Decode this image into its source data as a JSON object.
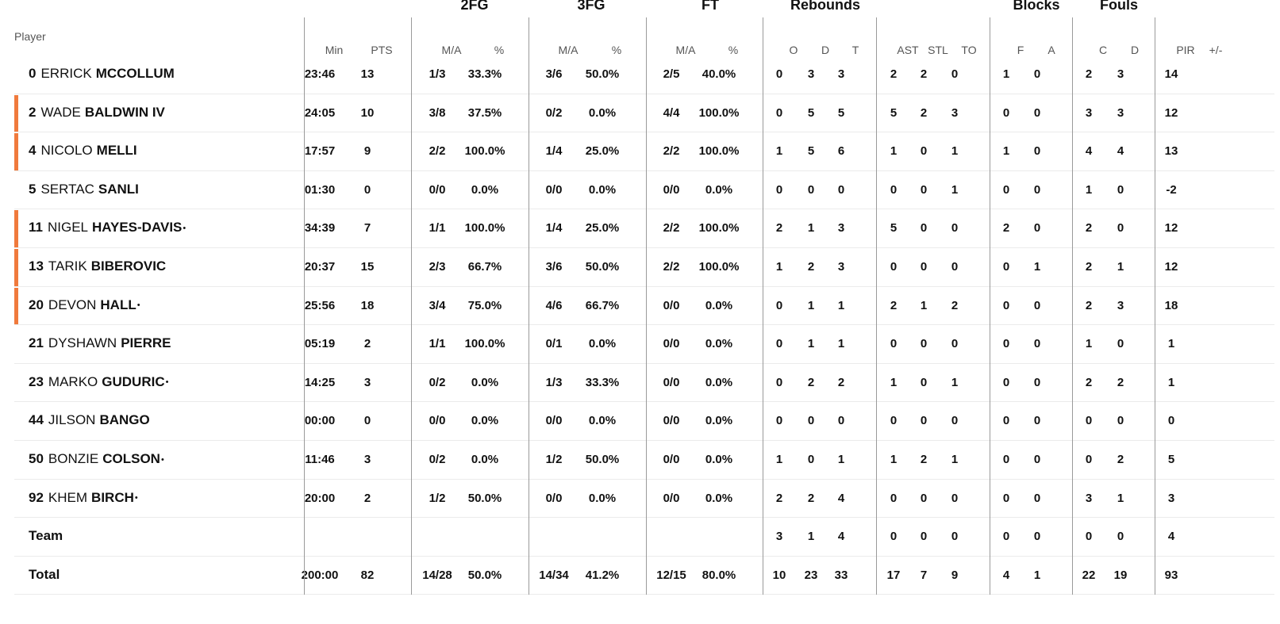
{
  "headers": {
    "player": "Player",
    "groups": {
      "fg2": "2FG",
      "fg3": "3FG",
      "ft": "FT",
      "rebounds": "Rebounds",
      "blocks": "Blocks",
      "fouls": "Fouls"
    },
    "cols": {
      "min": "Min",
      "pts": "PTS",
      "fg2_ma": "M/A",
      "fg2_pct": "%",
      "fg3_ma": "M/A",
      "fg3_pct": "%",
      "ft_ma": "M/A",
      "ft_pct": "%",
      "reb_o": "O",
      "reb_d": "D",
      "reb_t": "T",
      "ast": "AST",
      "stl": "STL",
      "to": "TO",
      "blk_f": "F",
      "blk_a": "A",
      "foul_c": "C",
      "foul_d": "D",
      "pir": "PIR",
      "pm": "+/-"
    }
  },
  "players": [
    {
      "num": "0",
      "first": "ERRICK",
      "last": "MCCOLLUM",
      "mark": "",
      "starter": false,
      "min": "23:46",
      "pts": "13",
      "fg2_ma": "1/3",
      "fg2_pct": "33.3%",
      "fg3_ma": "3/6",
      "fg3_pct": "50.0%",
      "ft_ma": "2/5",
      "ft_pct": "40.0%",
      "reb_o": "0",
      "reb_d": "3",
      "reb_t": "3",
      "ast": "2",
      "stl": "2",
      "to": "0",
      "blk_f": "1",
      "blk_a": "0",
      "foul_c": "2",
      "foul_d": "3",
      "pir": "14",
      "pm": ""
    },
    {
      "num": "2",
      "first": "WADE",
      "last": "BALDWIN IV",
      "mark": "",
      "starter": true,
      "min": "24:05",
      "pts": "10",
      "fg2_ma": "3/8",
      "fg2_pct": "37.5%",
      "fg3_ma": "0/2",
      "fg3_pct": "0.0%",
      "ft_ma": "4/4",
      "ft_pct": "100.0%",
      "reb_o": "0",
      "reb_d": "5",
      "reb_t": "5",
      "ast": "5",
      "stl": "2",
      "to": "3",
      "blk_f": "0",
      "blk_a": "0",
      "foul_c": "3",
      "foul_d": "3",
      "pir": "12",
      "pm": ""
    },
    {
      "num": "4",
      "first": "NICOLO",
      "last": "MELLI",
      "mark": "",
      "starter": true,
      "min": "17:57",
      "pts": "9",
      "fg2_ma": "2/2",
      "fg2_pct": "100.0%",
      "fg3_ma": "1/4",
      "fg3_pct": "25.0%",
      "ft_ma": "2/2",
      "ft_pct": "100.0%",
      "reb_o": "1",
      "reb_d": "5",
      "reb_t": "6",
      "ast": "1",
      "stl": "0",
      "to": "1",
      "blk_f": "1",
      "blk_a": "0",
      "foul_c": "4",
      "foul_d": "4",
      "pir": "13",
      "pm": ""
    },
    {
      "num": "5",
      "first": "SERTAC",
      "last": "SANLI",
      "mark": "",
      "starter": false,
      "min": "01:30",
      "pts": "0",
      "fg2_ma": "0/0",
      "fg2_pct": "0.0%",
      "fg3_ma": "0/0",
      "fg3_pct": "0.0%",
      "ft_ma": "0/0",
      "ft_pct": "0.0%",
      "reb_o": "0",
      "reb_d": "0",
      "reb_t": "0",
      "ast": "0",
      "stl": "0",
      "to": "1",
      "blk_f": "0",
      "blk_a": "0",
      "foul_c": "1",
      "foul_d": "0",
      "pir": "-2",
      "pm": ""
    },
    {
      "num": "11",
      "first": "NIGEL",
      "last": "HAYES-DAVIS",
      "mark": "•",
      "starter": true,
      "min": "34:39",
      "pts": "7",
      "fg2_ma": "1/1",
      "fg2_pct": "100.0%",
      "fg3_ma": "1/4",
      "fg3_pct": "25.0%",
      "ft_ma": "2/2",
      "ft_pct": "100.0%",
      "reb_o": "2",
      "reb_d": "1",
      "reb_t": "3",
      "ast": "5",
      "stl": "0",
      "to": "0",
      "blk_f": "2",
      "blk_a": "0",
      "foul_c": "2",
      "foul_d": "0",
      "pir": "12",
      "pm": ""
    },
    {
      "num": "13",
      "first": "TARIK",
      "last": "BIBEROVIC",
      "mark": "",
      "starter": true,
      "min": "20:37",
      "pts": "15",
      "fg2_ma": "2/3",
      "fg2_pct": "66.7%",
      "fg3_ma": "3/6",
      "fg3_pct": "50.0%",
      "ft_ma": "2/2",
      "ft_pct": "100.0%",
      "reb_o": "1",
      "reb_d": "2",
      "reb_t": "3",
      "ast": "0",
      "stl": "0",
      "to": "0",
      "blk_f": "0",
      "blk_a": "1",
      "foul_c": "2",
      "foul_d": "1",
      "pir": "12",
      "pm": ""
    },
    {
      "num": "20",
      "first": "DEVON",
      "last": "HALL",
      "mark": "•",
      "starter": true,
      "min": "25:56",
      "pts": "18",
      "fg2_ma": "3/4",
      "fg2_pct": "75.0%",
      "fg3_ma": "4/6",
      "fg3_pct": "66.7%",
      "ft_ma": "0/0",
      "ft_pct": "0.0%",
      "reb_o": "0",
      "reb_d": "1",
      "reb_t": "1",
      "ast": "2",
      "stl": "1",
      "to": "2",
      "blk_f": "0",
      "blk_a": "0",
      "foul_c": "2",
      "foul_d": "3",
      "pir": "18",
      "pm": ""
    },
    {
      "num": "21",
      "first": "DYSHAWN",
      "last": "PIERRE",
      "mark": "",
      "starter": false,
      "min": "05:19",
      "pts": "2",
      "fg2_ma": "1/1",
      "fg2_pct": "100.0%",
      "fg3_ma": "0/1",
      "fg3_pct": "0.0%",
      "ft_ma": "0/0",
      "ft_pct": "0.0%",
      "reb_o": "0",
      "reb_d": "1",
      "reb_t": "1",
      "ast": "0",
      "stl": "0",
      "to": "0",
      "blk_f": "0",
      "blk_a": "0",
      "foul_c": "1",
      "foul_d": "0",
      "pir": "1",
      "pm": ""
    },
    {
      "num": "23",
      "first": "MARKO",
      "last": "GUDURIC",
      "mark": "•",
      "starter": false,
      "min": "14:25",
      "pts": "3",
      "fg2_ma": "0/2",
      "fg2_pct": "0.0%",
      "fg3_ma": "1/3",
      "fg3_pct": "33.3%",
      "ft_ma": "0/0",
      "ft_pct": "0.0%",
      "reb_o": "0",
      "reb_d": "2",
      "reb_t": "2",
      "ast": "1",
      "stl": "0",
      "to": "1",
      "blk_f": "0",
      "blk_a": "0",
      "foul_c": "2",
      "foul_d": "2",
      "pir": "1",
      "pm": ""
    },
    {
      "num": "44",
      "first": "JILSON",
      "last": "BANGO",
      "mark": "",
      "starter": false,
      "min": "00:00",
      "pts": "0",
      "fg2_ma": "0/0",
      "fg2_pct": "0.0%",
      "fg3_ma": "0/0",
      "fg3_pct": "0.0%",
      "ft_ma": "0/0",
      "ft_pct": "0.0%",
      "reb_o": "0",
      "reb_d": "0",
      "reb_t": "0",
      "ast": "0",
      "stl": "0",
      "to": "0",
      "blk_f": "0",
      "blk_a": "0",
      "foul_c": "0",
      "foul_d": "0",
      "pir": "0",
      "pm": ""
    },
    {
      "num": "50",
      "first": "BONZIE",
      "last": "COLSON",
      "mark": "•",
      "starter": false,
      "min": "11:46",
      "pts": "3",
      "fg2_ma": "0/2",
      "fg2_pct": "0.0%",
      "fg3_ma": "1/2",
      "fg3_pct": "50.0%",
      "ft_ma": "0/0",
      "ft_pct": "0.0%",
      "reb_o": "1",
      "reb_d": "0",
      "reb_t": "1",
      "ast": "1",
      "stl": "2",
      "to": "1",
      "blk_f": "0",
      "blk_a": "0",
      "foul_c": "0",
      "foul_d": "2",
      "pir": "5",
      "pm": ""
    },
    {
      "num": "92",
      "first": "KHEM",
      "last": "BIRCH",
      "mark": "•",
      "starter": false,
      "min": "20:00",
      "pts": "2",
      "fg2_ma": "1/2",
      "fg2_pct": "50.0%",
      "fg3_ma": "0/0",
      "fg3_pct": "0.0%",
      "ft_ma": "0/0",
      "ft_pct": "0.0%",
      "reb_o": "2",
      "reb_d": "2",
      "reb_t": "4",
      "ast": "0",
      "stl": "0",
      "to": "0",
      "blk_f": "0",
      "blk_a": "0",
      "foul_c": "3",
      "foul_d": "1",
      "pir": "3",
      "pm": ""
    }
  ],
  "team": {
    "label": "Team",
    "reb_o": "3",
    "reb_d": "1",
    "reb_t": "4",
    "ast": "0",
    "stl": "0",
    "to": "0",
    "blk_f": "0",
    "blk_a": "0",
    "foul_c": "0",
    "foul_d": "0",
    "pir": "4"
  },
  "total": {
    "label": "Total",
    "min": "200:00",
    "pts": "82",
    "fg2_ma": "14/28",
    "fg2_pct": "50.0%",
    "fg3_ma": "14/34",
    "fg3_pct": "41.2%",
    "ft_ma": "12/15",
    "ft_pct": "80.0%",
    "reb_o": "10",
    "reb_d": "23",
    "reb_t": "33",
    "ast": "17",
    "stl": "7",
    "to": "9",
    "blk_f": "4",
    "blk_a": "1",
    "foul_c": "22",
    "foul_d": "19",
    "pir": "93"
  },
  "colors": {
    "starter_bar": "#f07a3c",
    "divider": "#9a9a9a",
    "row_line": "#ebebeb",
    "header_text": "#555555"
  }
}
